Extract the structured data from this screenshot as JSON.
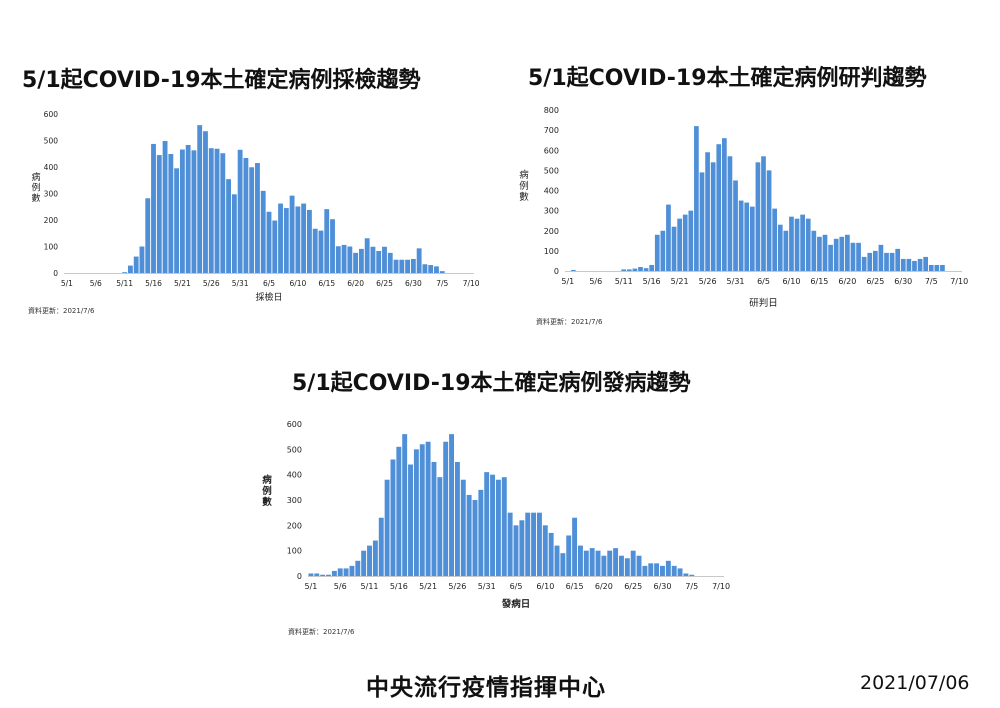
{
  "footer": {
    "organization": "中央流行疫情指揮中心",
    "date": "2021/07/06"
  },
  "colors": {
    "bar": "#4f8fd8",
    "axis": "#c8c8c8",
    "text": "#222222"
  },
  "chart_data": [
    {
      "type": "bar",
      "title": "5/1起COVID-19本土確定病例採檢趨勢",
      "xlabel": "採檢日",
      "ylabel": "病例數",
      "update_note": "資料更新：2021/7/6",
      "ylim": [
        0,
        600
      ],
      "yticks": [
        0,
        100,
        200,
        300,
        400,
        500,
        600
      ],
      "xticks": [
        "5/1",
        "5/6",
        "5/11",
        "5/16",
        "5/21",
        "5/26",
        "5/31",
        "6/5",
        "6/10",
        "6/15",
        "6/20",
        "6/25",
        "6/30",
        "7/5",
        "7/10"
      ],
      "num_days": 71,
      "start_date": "5/1",
      "values": [
        0,
        0,
        0,
        0,
        0,
        0,
        0,
        0,
        0,
        0,
        3,
        28,
        62,
        100,
        282,
        487,
        445,
        498,
        449,
        395,
        466,
        483,
        463,
        558,
        535,
        471,
        469,
        452,
        354,
        297,
        465,
        434,
        399,
        415,
        310,
        231,
        198,
        262,
        245,
        292,
        251,
        262,
        238,
        167,
        160,
        241,
        203,
        101,
        106,
        100,
        76,
        91,
        131,
        99,
        83,
        99,
        76,
        50,
        50,
        50,
        53,
        93,
        33,
        30,
        25,
        7,
        0,
        0,
        0,
        0,
        0
      ]
    },
    {
      "type": "bar",
      "title": "5/1起COVID-19本土確定病例研判趨勢",
      "xlabel": "研判日",
      "ylabel": "病例數",
      "update_note": "資料更新：2021/7/6",
      "ylim": [
        0,
        800
      ],
      "yticks": [
        0,
        100,
        200,
        300,
        400,
        500,
        600,
        700,
        800
      ],
      "xticks": [
        "5/1",
        "5/6",
        "5/11",
        "5/16",
        "5/21",
        "5/26",
        "5/31",
        "6/5",
        "6/10",
        "6/15",
        "6/20",
        "6/25",
        "6/30",
        "7/5",
        "7/10"
      ],
      "num_days": 71,
      "start_date": "5/1",
      "values": [
        0,
        5,
        0,
        0,
        0,
        0,
        0,
        0,
        0,
        0,
        8,
        8,
        12,
        20,
        14,
        30,
        180,
        200,
        330,
        220,
        260,
        280,
        300,
        720,
        490,
        590,
        540,
        630,
        660,
        570,
        450,
        350,
        340,
        320,
        540,
        570,
        500,
        310,
        230,
        200,
        270,
        260,
        280,
        260,
        200,
        170,
        180,
        130,
        160,
        170,
        180,
        140,
        140,
        70,
        90,
        100,
        130,
        90,
        90,
        110,
        60,
        60,
        50,
        60,
        70,
        30,
        30,
        30,
        0,
        0,
        0
      ],
      "note": "values sized to figure; plausible reading"
    },
    {
      "type": "bar",
      "title": "5/1起COVID-19本土確定病例發病趨勢",
      "xlabel": "發病日",
      "ylabel": "病例數",
      "update_note": "資料更新：2021/7/6",
      "ylim": [
        0,
        600
      ],
      "yticks": [
        0,
        100,
        200,
        300,
        400,
        500,
        600
      ],
      "xticks": [
        "5/1",
        "5/6",
        "5/11",
        "5/16",
        "5/21",
        "5/26",
        "5/31",
        "6/5",
        "6/10",
        "6/15",
        "6/20",
        "6/25",
        "6/30",
        "7/5",
        "7/10"
      ],
      "num_days": 71,
      "start_date": "5/1",
      "values": [
        10,
        10,
        5,
        5,
        20,
        30,
        30,
        40,
        60,
        100,
        120,
        140,
        230,
        380,
        460,
        510,
        560,
        440,
        500,
        520,
        530,
        450,
        390,
        530,
        560,
        450,
        380,
        320,
        300,
        340,
        410,
        400,
        380,
        390,
        250,
        200,
        220,
        250,
        250,
        250,
        200,
        170,
        120,
        90,
        160,
        230,
        120,
        100,
        110,
        100,
        80,
        100,
        110,
        80,
        70,
        100,
        80,
        40,
        50,
        50,
        40,
        60,
        40,
        30,
        10,
        5,
        0,
        0,
        0,
        0,
        0
      ]
    }
  ]
}
